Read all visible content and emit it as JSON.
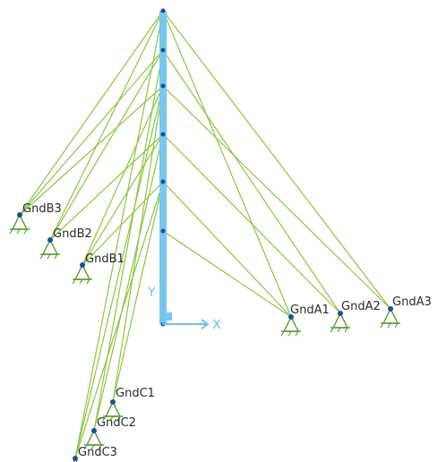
{
  "scene": {
    "background": "#ffffff",
    "mast_color": "#79c7ec",
    "guy_color": "#8cc63f",
    "node_color": "#1f4e9c",
    "support_color": "#5e9e3a",
    "axis_color": "#6cc3ea",
    "label_color": "#2b2b2b"
  },
  "axes": {
    "x_label": "X",
    "y_label": "Y"
  },
  "ground_anchors": [
    {
      "id": "GndB3",
      "label": "GndB3"
    },
    {
      "id": "GndB2",
      "label": "GndB2"
    },
    {
      "id": "GndB1",
      "label": "GndB1"
    },
    {
      "id": "GndA1",
      "label": "GndA1"
    },
    {
      "id": "GndA2",
      "label": "GndA2"
    },
    {
      "id": "GndA3",
      "label": "GndA3"
    },
    {
      "id": "GndC1",
      "label": "GndC1"
    },
    {
      "id": "GndC2",
      "label": "GndC2"
    },
    {
      "id": "GndC3",
      "label": "GndC3"
    }
  ],
  "mast_levels": [
    {
      "id": "L0"
    },
    {
      "id": "L1"
    },
    {
      "id": "L2"
    },
    {
      "id": "L3"
    },
    {
      "id": "L4"
    },
    {
      "id": "L5"
    },
    {
      "id": "L6"
    }
  ],
  "guy_wires": [
    {
      "from": "GndB3",
      "to": "L6"
    },
    {
      "from": "GndB3",
      "to": "L5"
    },
    {
      "from": "GndB3",
      "to": "L4"
    },
    {
      "from": "GndB2",
      "to": "L6"
    },
    {
      "from": "GndB2",
      "to": "L5"
    },
    {
      "from": "GndB2",
      "to": "L3"
    },
    {
      "from": "GndB1",
      "to": "L4"
    },
    {
      "from": "GndB1",
      "to": "L3"
    },
    {
      "from": "GndB1",
      "to": "L2"
    },
    {
      "from": "GndA1",
      "to": "L6"
    },
    {
      "from": "GndA1",
      "to": "L2"
    },
    {
      "from": "GndA1",
      "to": "L1"
    },
    {
      "from": "GndA2",
      "to": "L5"
    },
    {
      "from": "GndA2",
      "to": "L3"
    },
    {
      "from": "GndA3",
      "to": "L6"
    },
    {
      "from": "GndA3",
      "to": "L4"
    },
    {
      "from": "GndC1",
      "to": "L4"
    },
    {
      "from": "GndC1",
      "to": "L2"
    },
    {
      "from": "GndC2",
      "to": "L5"
    },
    {
      "from": "GndC2",
      "to": "L3"
    },
    {
      "from": "GndC3",
      "to": "L6"
    },
    {
      "from": "GndC3",
      "to": "L4"
    },
    {
      "from": "GndC3",
      "to": "L2"
    }
  ]
}
